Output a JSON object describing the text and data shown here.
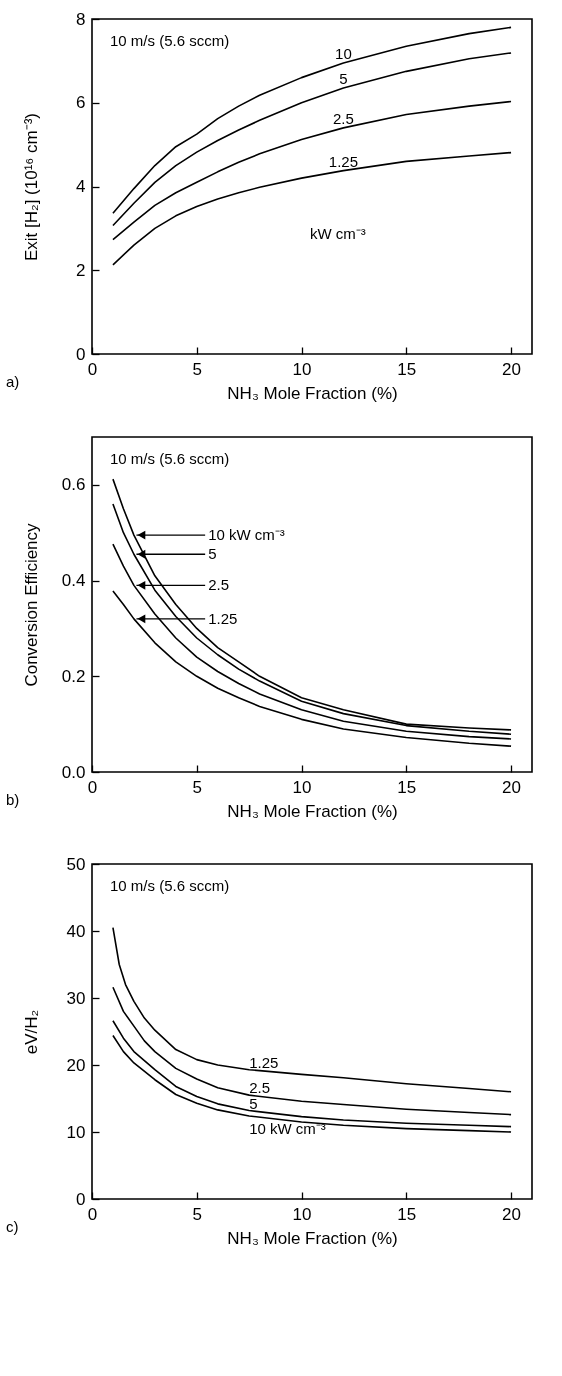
{
  "chart_data": [
    {
      "type": "line",
      "xlabel": "NH₃ Mole Fraction (%)",
      "ylabel": "Exit [H₂] (10¹⁶ cm⁻³)",
      "xlim": [
        0,
        21
      ],
      "xticks": [
        0,
        5,
        10,
        15,
        20
      ],
      "ylim": [
        0,
        8
      ],
      "yticks": [
        0,
        2,
        4,
        6,
        8
      ],
      "grid": false,
      "legend": false,
      "annotations": [
        "10 m/s (5.6 sccm)",
        "kW cm⁻³",
        "a)"
      ],
      "series": [
        {
          "name": "10",
          "color": "#000000",
          "x": [
            1,
            2,
            3,
            4,
            5,
            6,
            7,
            8,
            10,
            12,
            15,
            18,
            20
          ],
          "values": [
            3.36,
            3.95,
            4.5,
            4.95,
            5.25,
            5.62,
            5.92,
            6.18,
            6.6,
            6.95,
            7.35,
            7.65,
            7.8
          ]
        },
        {
          "name": "5",
          "color": "#000000",
          "x": [
            1,
            2,
            3,
            4,
            5,
            6,
            7,
            8,
            10,
            12,
            15,
            18,
            20
          ],
          "values": [
            3.07,
            3.6,
            4.1,
            4.5,
            4.82,
            5.1,
            5.35,
            5.58,
            6.0,
            6.35,
            6.75,
            7.05,
            7.19
          ]
        },
        {
          "name": "2.5",
          "color": "#000000",
          "x": [
            1,
            2,
            3,
            4,
            5,
            6,
            7,
            8,
            10,
            12,
            15,
            18,
            20
          ],
          "values": [
            2.73,
            3.15,
            3.55,
            3.85,
            4.1,
            4.35,
            4.58,
            4.78,
            5.12,
            5.4,
            5.72,
            5.92,
            6.03
          ]
        },
        {
          "name": "1.25",
          "color": "#000000",
          "x": [
            1,
            2,
            3,
            4,
            5,
            6,
            7,
            8,
            10,
            12,
            15,
            18,
            20
          ],
          "values": [
            2.13,
            2.6,
            3.0,
            3.3,
            3.52,
            3.7,
            3.85,
            3.98,
            4.2,
            4.38,
            4.6,
            4.73,
            4.81
          ]
        }
      ]
    },
    {
      "type": "line",
      "xlabel": "NH₃ Mole Fraction (%)",
      "ylabel": "Conversion Efficiency",
      "xlim": [
        0,
        21
      ],
      "xticks": [
        0,
        5,
        10,
        15,
        20
      ],
      "ylim": [
        0,
        0.7
      ],
      "yticks": [
        {
          "value": 0,
          "label": "0.0"
        },
        {
          "value": 0.2,
          "label": "0.2"
        },
        {
          "value": 0.4,
          "label": "0.4"
        },
        {
          "value": 0.6,
          "label": "0.6"
        }
      ],
      "grid": false,
      "legend": "top left",
      "annotations": [
        "10 m/s (5.6 sccm)",
        "b)"
      ],
      "series": [
        {
          "name": "10 kW cm⁻³",
          "color": "#000000",
          "x": [
            1,
            1.5,
            2,
            3,
            4,
            5,
            6,
            7,
            8,
            10,
            12,
            15,
            18,
            20
          ],
          "values": [
            0.612,
            0.55,
            0.495,
            0.41,
            0.35,
            0.3,
            0.26,
            0.23,
            0.2,
            0.155,
            0.13,
            0.1,
            0.092,
            0.088
          ]
        },
        {
          "name": "5",
          "color": "#000000",
          "x": [
            1,
            1.5,
            2,
            3,
            4,
            5,
            6,
            7,
            8,
            10,
            12,
            15,
            18,
            20
          ],
          "values": [
            0.56,
            0.5,
            0.455,
            0.38,
            0.325,
            0.28,
            0.245,
            0.215,
            0.19,
            0.148,
            0.122,
            0.097,
            0.085,
            0.079
          ]
        },
        {
          "name": "2.5",
          "color": "#000000",
          "x": [
            1,
            1.5,
            2,
            3,
            4,
            5,
            6,
            7,
            8,
            10,
            12,
            15,
            18,
            20
          ],
          "values": [
            0.476,
            0.43,
            0.39,
            0.33,
            0.28,
            0.24,
            0.21,
            0.185,
            0.163,
            0.13,
            0.106,
            0.085,
            0.074,
            0.069
          ]
        },
        {
          "name": "1.25",
          "color": "#000000",
          "x": [
            1,
            1.5,
            2,
            3,
            4,
            5,
            6,
            7,
            8,
            10,
            12,
            15,
            18,
            20
          ],
          "values": [
            0.378,
            0.35,
            0.32,
            0.27,
            0.23,
            0.2,
            0.175,
            0.155,
            0.137,
            0.11,
            0.09,
            0.072,
            0.06,
            0.054
          ]
        }
      ]
    },
    {
      "type": "line",
      "xlabel": "NH₃ Mole Fraction (%)",
      "ylabel": "eV/H₂",
      "xlim": [
        0,
        21
      ],
      "xticks": [
        0,
        5,
        10,
        15,
        20
      ],
      "ylim": [
        0,
        50
      ],
      "yticks": [
        0,
        10,
        20,
        30,
        40,
        50
      ],
      "grid": false,
      "legend": false,
      "annotations": [
        "10 m/s (5.6 sccm)",
        "c)"
      ],
      "series": [
        {
          "name": "1.25",
          "color": "#000000",
          "x": [
            1,
            1.3,
            1.6,
            2,
            2.5,
            3,
            4,
            5,
            6,
            7.5,
            10,
            12,
            15,
            18,
            20
          ],
          "values": [
            40.5,
            35,
            32,
            29.5,
            27,
            25.2,
            22.3,
            20.8,
            20,
            19.3,
            18.6,
            18.1,
            17.2,
            16.5,
            16.0
          ]
        },
        {
          "name": "2.5",
          "color": "#000000",
          "x": [
            1,
            1.5,
            2,
            2.5,
            3,
            4,
            5,
            6,
            7.5,
            10,
            12,
            15,
            18,
            20
          ],
          "values": [
            31.6,
            28,
            25.8,
            23.6,
            22,
            19.5,
            17.9,
            16.6,
            15.5,
            14.6,
            14.1,
            13.4,
            12.9,
            12.6
          ]
        },
        {
          "name": "5",
          "color": "#000000",
          "x": [
            1,
            1.5,
            2,
            3,
            4,
            5,
            6,
            7.5,
            10,
            12,
            15,
            18,
            20
          ],
          "values": [
            26.6,
            24,
            22,
            19.3,
            16.8,
            15.3,
            14.2,
            13.2,
            12.3,
            11.8,
            11.3,
            11,
            10.8
          ]
        },
        {
          "name": "10 kW cm⁻³",
          "color": "#000000",
          "x": [
            1,
            1.5,
            2,
            3,
            4,
            5,
            6,
            7.5,
            10,
            12,
            15,
            18,
            20
          ],
          "values": [
            24.4,
            22,
            20.3,
            17.8,
            15.6,
            14.3,
            13.3,
            12.4,
            11.5,
            11,
            10.5,
            10.2,
            10.0
          ]
        }
      ]
    }
  ]
}
